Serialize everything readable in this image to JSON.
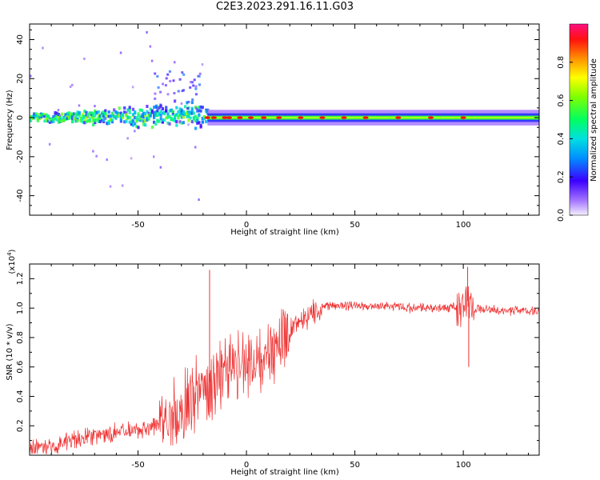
{
  "title": "C2E3.2023.291.16.11.G03",
  "chart_data": [
    {
      "type": "heatmap",
      "description": "Spectrogram of radio occultation signal; energy concentrated near 0 Hz, broad scatter at low heights",
      "xlabel": "Height of straight line (km)",
      "ylabel": "Frequency (Hz)",
      "xlim": [
        -100,
        135
      ],
      "ylim": [
        -50,
        48
      ],
      "xticks": [
        -50,
        0,
        50,
        100
      ],
      "yticks": [
        -40,
        -20,
        0,
        20,
        40
      ],
      "colorbar": {
        "label": "Normalized spectral amplitude",
        "range": [
          0,
          1
        ],
        "ticks": [
          0.0,
          0.2,
          0.4,
          0.6,
          0.8
        ]
      },
      "ridge": {
        "frequency_hz": 0,
        "high_amplitude_heights_km": [
          -18,
          -15,
          -10,
          -8,
          -3,
          2,
          8,
          15,
          25,
          35,
          45,
          55,
          70,
          85,
          100
        ]
      },
      "scatter_region_km": [
        -100,
        -20
      ]
    },
    {
      "type": "line",
      "xlabel": "Height of straight line (km)",
      "ylabel": "SNR (10 * v/v)",
      "y_multiplier": "(x10^4)",
      "xlim": [
        -100,
        135
      ],
      "ylim": [
        0,
        1.3
      ],
      "xticks": [
        -50,
        0,
        50,
        100
      ],
      "yticks": [
        0.2,
        0.4,
        0.6,
        0.8,
        1.0,
        1.2
      ],
      "color": "#ee3030",
      "series": [
        {
          "name": "",
          "x": [
            -100,
            -95,
            -90,
            -85,
            -80,
            -75,
            -70,
            -65,
            -60,
            -55,
            -50,
            -45,
            -40,
            -35,
            -30,
            -25,
            -20,
            -15,
            -10,
            -5,
            0,
            5,
            10,
            15,
            20,
            25,
            30,
            35,
            40,
            45,
            50,
            55,
            60,
            65,
            70,
            75,
            80,
            85,
            90,
            95,
            100,
            102,
            105,
            110,
            115,
            120,
            125,
            130,
            135
          ],
          "y": [
            0.04,
            0.05,
            0.06,
            0.08,
            0.1,
            0.12,
            0.13,
            0.14,
            0.15,
            0.16,
            0.17,
            0.19,
            0.22,
            0.26,
            0.32,
            0.4,
            0.46,
            0.52,
            0.58,
            0.62,
            0.63,
            0.66,
            0.7,
            0.76,
            0.85,
            0.92,
            0.97,
            1.0,
            1.02,
            1.02,
            1.02,
            1.01,
            1.01,
            1.01,
            1.01,
            1.0,
            1.0,
            1.0,
            1.0,
            1.01,
            0.98,
            1.05,
            0.99,
            0.99,
            0.99,
            0.98,
            0.99,
            0.98,
            0.98
          ]
        }
      ],
      "spikes": [
        {
          "x": -17,
          "y": 1.26
        },
        {
          "x": 102,
          "y": 1.28
        },
        {
          "x": 102.5,
          "y": 0.6
        }
      ]
    }
  ]
}
